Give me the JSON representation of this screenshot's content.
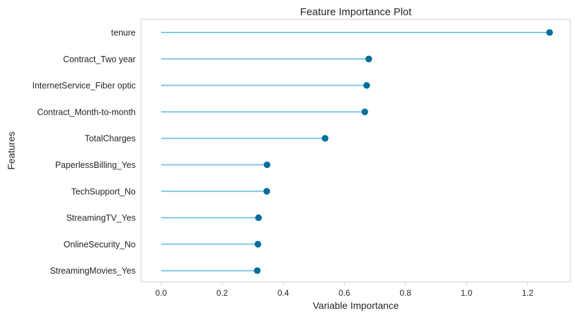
{
  "chart_data": {
    "type": "lollipop",
    "title": "Feature Importance Plot",
    "xlabel": "Variable Importance",
    "ylabel": "Features",
    "xlim": [
      -0.065,
      1.34
    ],
    "xticks": [
      0.0,
      0.2,
      0.4,
      0.6,
      0.8,
      1.0,
      1.2
    ],
    "xtick_labels": [
      "0.0",
      "0.2",
      "0.4",
      "0.6",
      "0.8",
      "1.0",
      "1.2"
    ],
    "grid": false,
    "colors": {
      "stem": "#7ec8e3",
      "marker": "#006e9f",
      "frame": "#cccccc"
    },
    "categories": [
      "tenure",
      "Contract_Two year",
      "InternetService_Fiber optic",
      "Contract_Month-to-month",
      "TotalCharges",
      "PaperlessBilling_Yes",
      "TechSupport_No",
      "StreamingTV_Yes",
      "OnlineSecurity_No",
      "StreamingMovies_Yes"
    ],
    "values": [
      1.272,
      0.68,
      0.673,
      0.667,
      0.537,
      0.347,
      0.346,
      0.319,
      0.317,
      0.315
    ]
  }
}
